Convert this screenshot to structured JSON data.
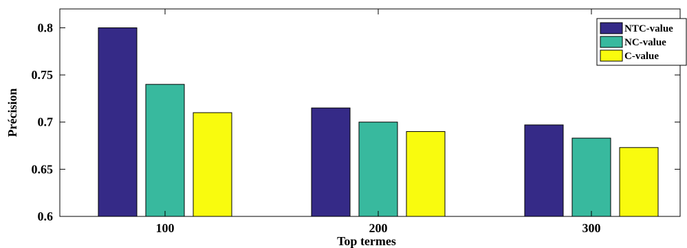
{
  "chart_data": {
    "type": "bar",
    "title": "",
    "xlabel": "Top termes",
    "ylabel": "Précision",
    "categories": [
      "100",
      "200",
      "300"
    ],
    "series": [
      {
        "name": "NTC-value",
        "values": [
          0.8,
          0.715,
          0.697
        ],
        "color": "#352a87"
      },
      {
        "name": "NC-value",
        "values": [
          0.74,
          0.7,
          0.683
        ],
        "color": "#38b99e"
      },
      {
        "name": "C-value",
        "values": [
          0.71,
          0.69,
          0.673
        ],
        "color": "#f9fb0e"
      }
    ],
    "ylim": [
      0.6,
      0.82
    ],
    "yticks": [
      "0.6",
      "0.65",
      "0.7",
      "0.75",
      "0.8"
    ],
    "grid": false,
    "legend_position": "top-right"
  }
}
